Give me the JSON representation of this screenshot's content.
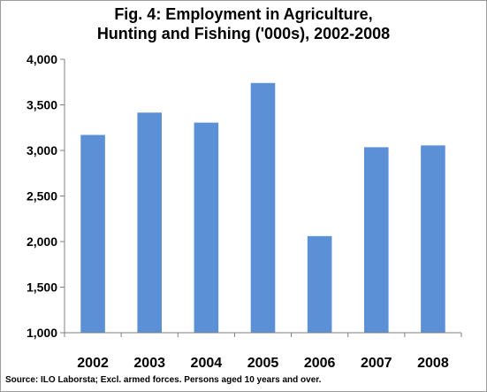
{
  "chart_data": {
    "type": "bar",
    "title_line1": "Fig. 4: Employment in Agriculture,",
    "title_line2": "Hunting and Fishing ('000s), 2002-2008",
    "xlabel": "",
    "ylabel": "",
    "categories": [
      "2002",
      "2003",
      "2004",
      "2005",
      "2006",
      "2007",
      "2008"
    ],
    "values": [
      3170,
      3415,
      3305,
      3740,
      2060,
      3035,
      3055
    ],
    "ylim": [
      1000,
      4000
    ],
    "yticks": [
      1000,
      1500,
      2000,
      2500,
      3000,
      3500,
      4000
    ],
    "ytick_labels": [
      "1,000",
      "1,500",
      "2,000",
      "2,500",
      "3,000",
      "3,500",
      "4,000"
    ],
    "bar_color": "#5b8fd6",
    "grid": false,
    "legend": "none"
  },
  "source_note": "Source: ILO Laborsta; Excl. armed forces. Persons aged 10 years and over."
}
